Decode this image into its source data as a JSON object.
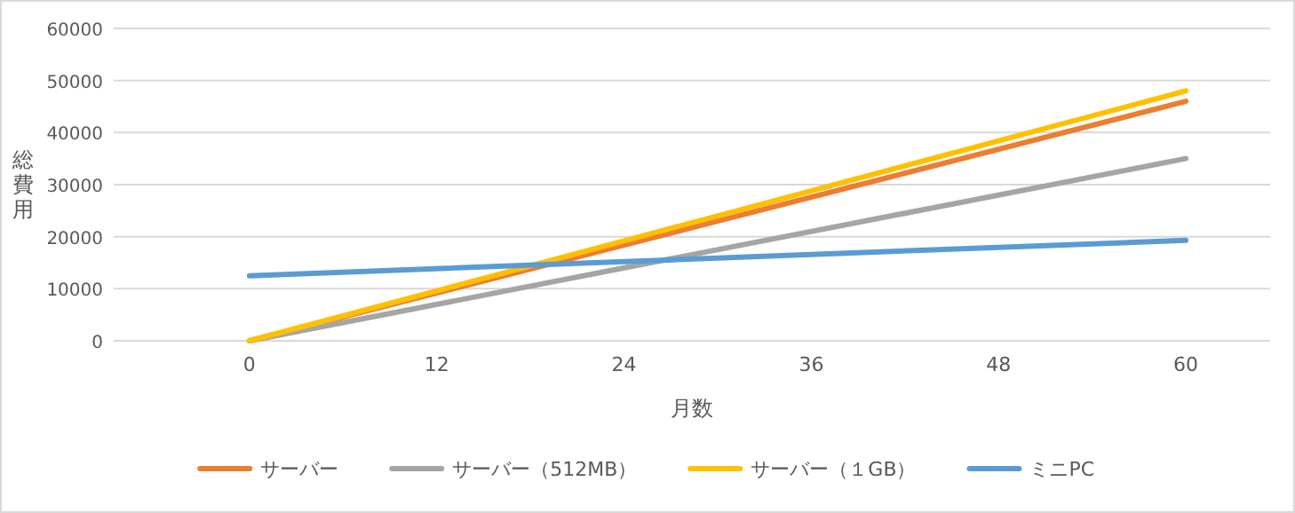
{
  "chart_data": {
    "type": "line",
    "xlabel": "月数",
    "ylabel": "総費用",
    "x": [
      0,
      60
    ],
    "xlim": [
      -8.7,
      65.4
    ],
    "xticks": [
      0,
      12,
      24,
      36,
      48,
      60
    ],
    "ylim": [
      0,
      60000
    ],
    "yticks": [
      0,
      10000,
      20000,
      30000,
      40000,
      50000,
      60000
    ],
    "grid": "y",
    "legend": "bottom",
    "marker": "none",
    "line_style": "solid",
    "series": [
      {
        "name": "サーバー",
        "color": "#ed7d31",
        "values": [
          0,
          46000
        ]
      },
      {
        "name": "サーバー（512MB）",
        "color": "#a5a5a5",
        "values": [
          0,
          35000
        ]
      },
      {
        "name": "サーバー（１GB）",
        "color": "#ffc000",
        "values": [
          0,
          48000
        ]
      },
      {
        "name": "ミニPC",
        "color": "#5b9bd5",
        "values": [
          12500,
          19300
        ]
      }
    ]
  }
}
